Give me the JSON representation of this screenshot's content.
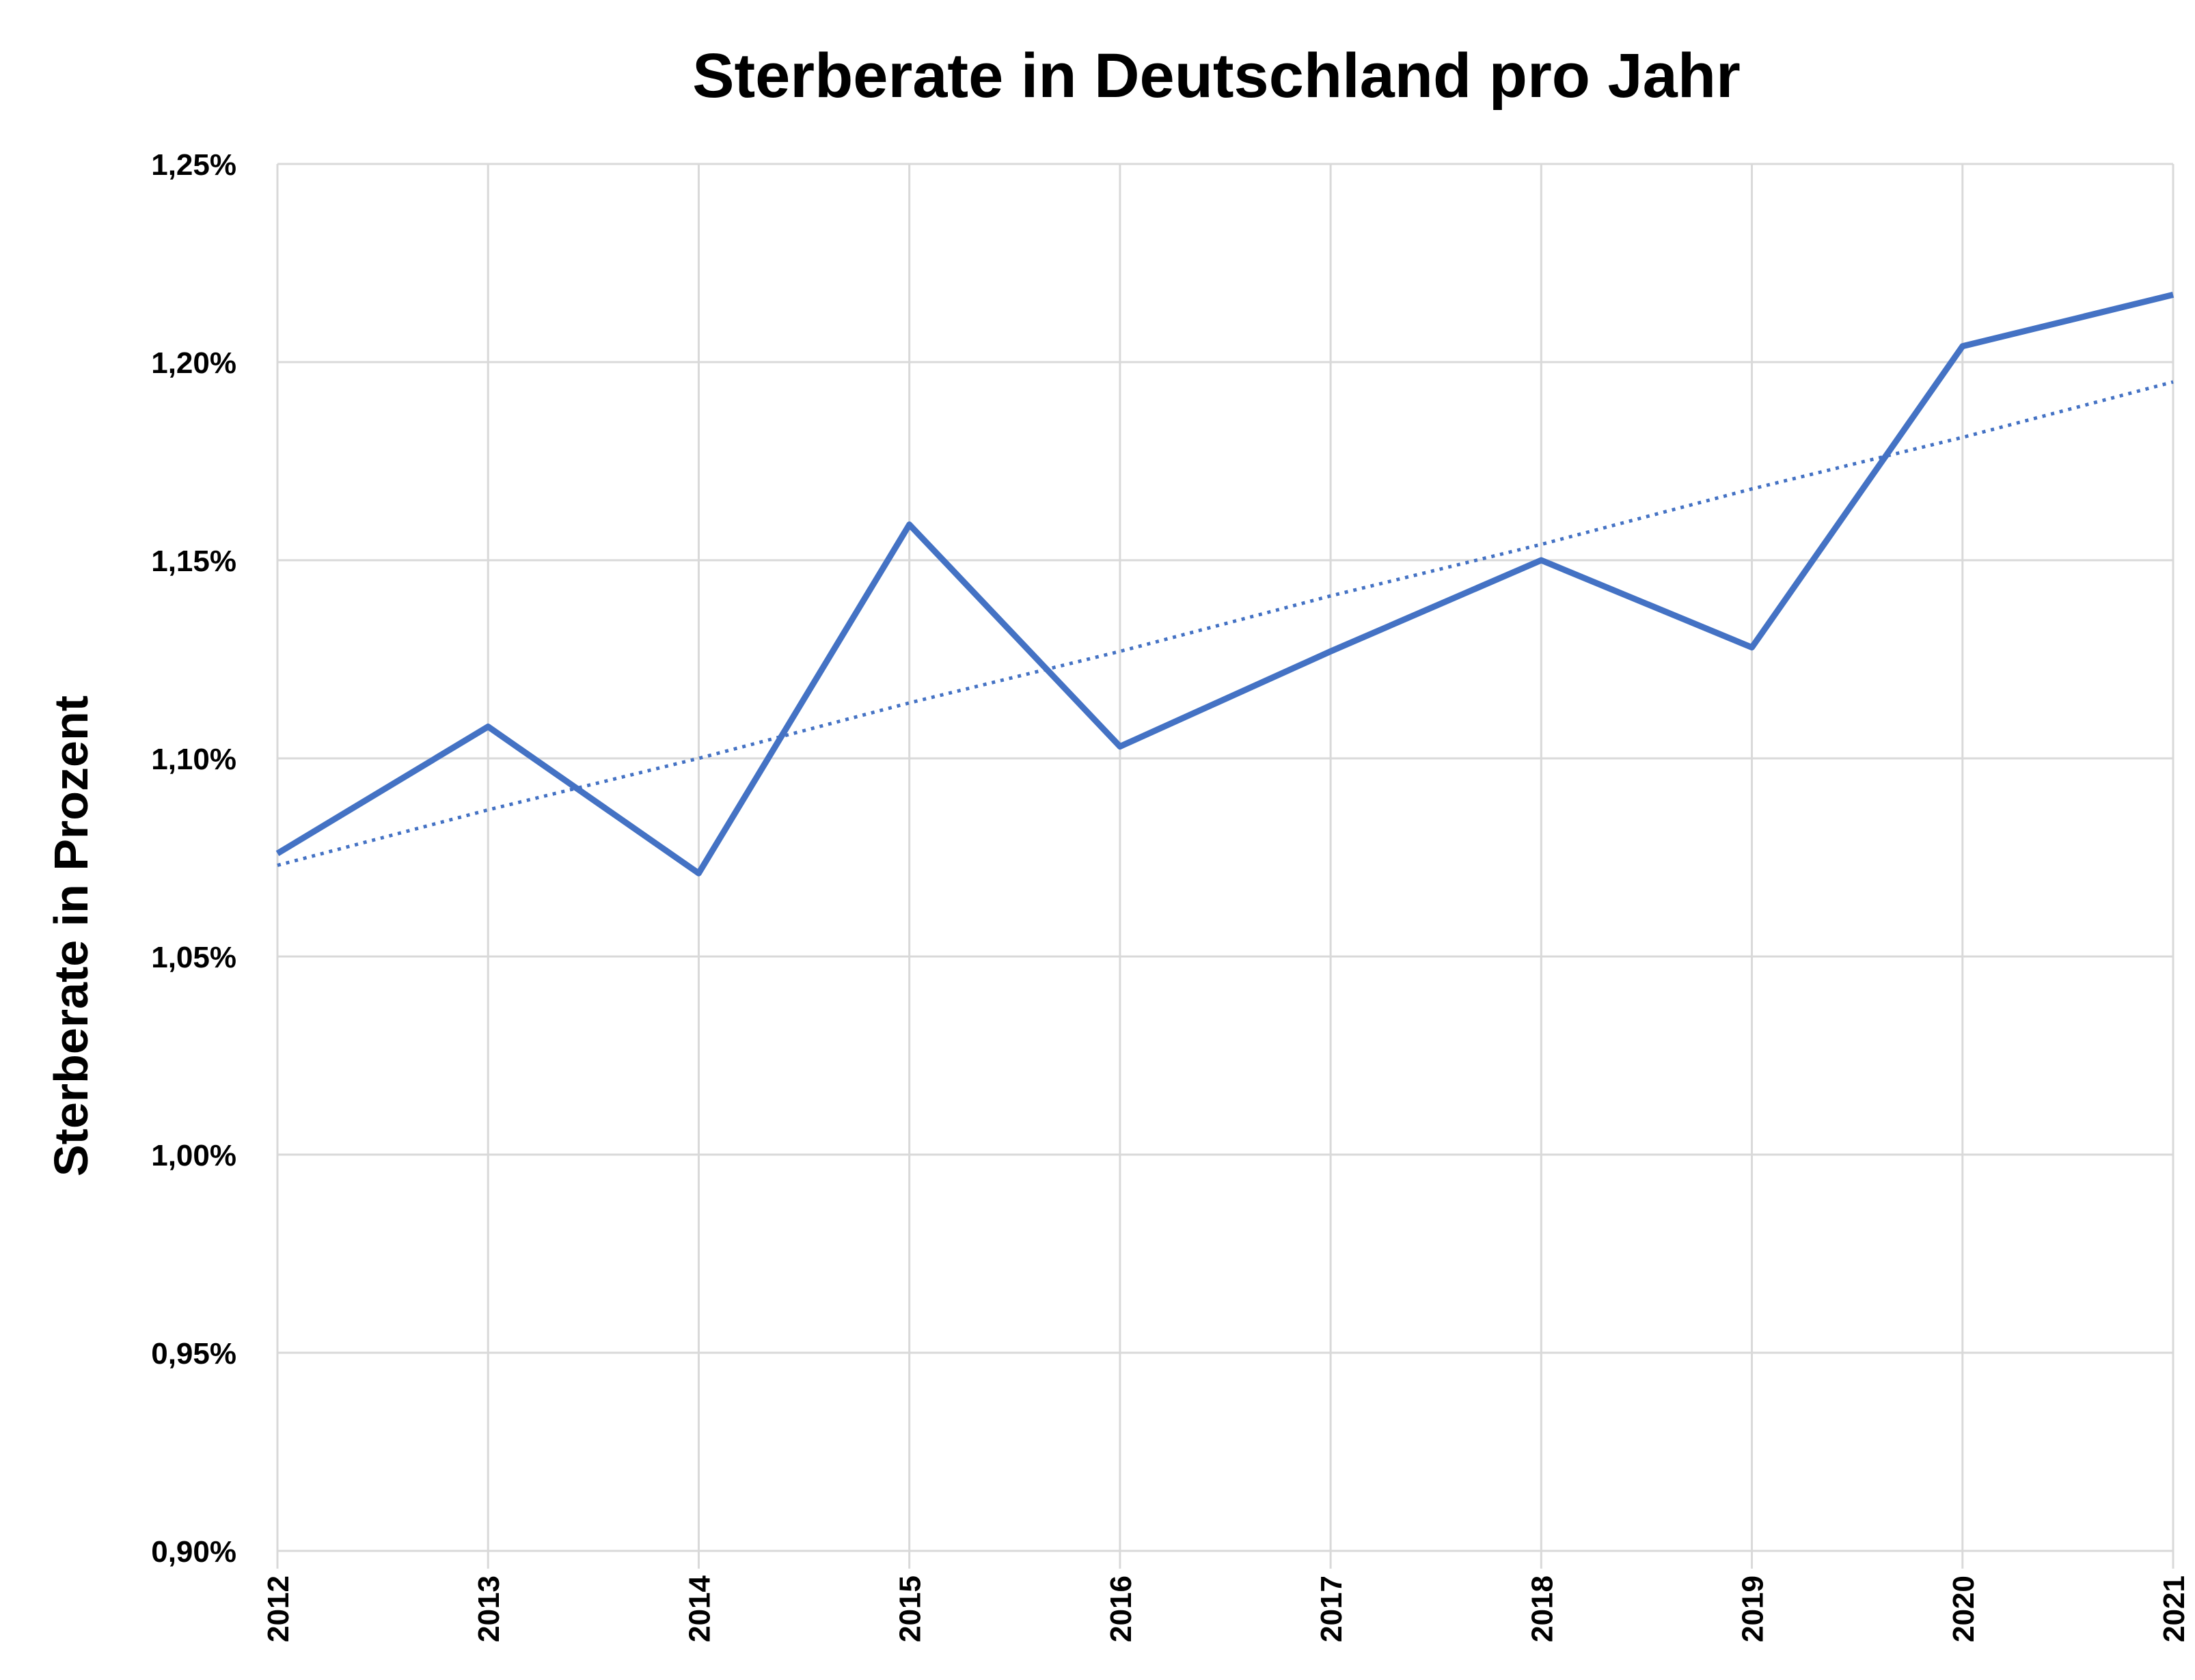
{
  "chart_data": {
    "type": "line",
    "title": "Sterberate in Deutschland pro Jahr",
    "xlabel": "",
    "ylabel": "Sterberate in Prozent",
    "categories": [
      "2012",
      "2013",
      "2014",
      "2015",
      "2016",
      "2017",
      "2018",
      "2019",
      "2020",
      "2021"
    ],
    "y_tick_labels": [
      "0,90%",
      "0,95%",
      "1,00%",
      "1,05%",
      "1,10%",
      "1,15%",
      "1,20%",
      "1,25%"
    ],
    "y_ticks": [
      0.9,
      0.95,
      1.0,
      1.05,
      1.1,
      1.15,
      1.2,
      1.25
    ],
    "ylim": [
      0.9,
      1.25
    ],
    "grid": true,
    "legend": "none",
    "series": [
      {
        "values": [
          1.076,
          1.108,
          1.071,
          1.159,
          1.103,
          1.127,
          1.15,
          1.128,
          1.204,
          1.217
        ],
        "color": "#4472C4",
        "style": "solid"
      },
      {
        "values": [
          1.073,
          1.087,
          1.1,
          1.114,
          1.127,
          1.141,
          1.154,
          1.168,
          1.181,
          1.195
        ],
        "color": "#4472C4",
        "style": "dotted",
        "role": "linear-trendline"
      }
    ],
    "colors": {
      "grid": "#D9D9D9",
      "text": "#000000"
    }
  }
}
